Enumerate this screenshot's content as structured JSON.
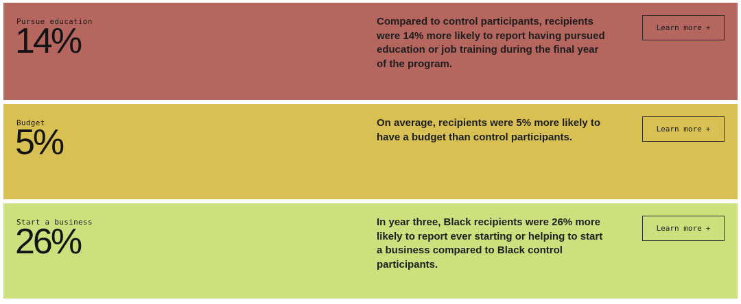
{
  "stats": [
    {
      "label": "Pursue education",
      "value": "14%",
      "description": "Compared to control participants, recipients were 14% more likely to report having pursued education or job training during the final year of the program.",
      "button_label": "Learn more",
      "button_icon": "+",
      "color": "#b5665f"
    },
    {
      "label": "Budget",
      "value": "5%",
      "description": "On average, recipients were 5% more likely to have a budget than control participants.",
      "button_label": "Learn more",
      "button_icon": "+",
      "color": "#d8c052"
    },
    {
      "label": "Start a business",
      "value": "26%",
      "description": "In year three, Black recipients were 26% more likely to report ever starting or helping to start a business compared to Black control participants.",
      "button_label": "Learn more",
      "button_icon": "+",
      "color": "#cde07e"
    }
  ]
}
